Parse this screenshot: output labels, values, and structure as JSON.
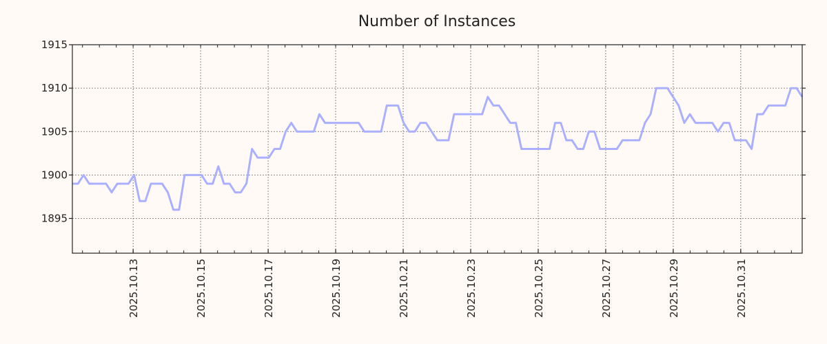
{
  "chart_data": {
    "type": "line",
    "title": "Number of Instances",
    "xlabel": "",
    "ylabel": "",
    "x_unit": "October 2025 day (fractional)",
    "x_start": 11.2,
    "x_step": 0.1663,
    "xlim": [
      11.2,
      32.82
    ],
    "ylim": [
      1891,
      1915
    ],
    "grid": true,
    "legend": "none",
    "y_ticks": [
      1895,
      1900,
      1905,
      1910,
      1915
    ],
    "y_tick_labels": [
      "1895",
      "1900",
      "1905",
      "1910",
      "1915"
    ],
    "x_ticks": [
      13,
      15,
      17,
      19,
      21,
      23,
      25,
      27,
      29,
      31
    ],
    "x_tick_labels": [
      "2025.10.13",
      "2025.10.15",
      "2025.10.17",
      "2025.10.19",
      "2025.10.21",
      "2025.10.23",
      "2025.10.25",
      "2025.10.27",
      "2025.10.29",
      "2025.10.31"
    ],
    "series": [
      {
        "name": "Number of Instances",
        "color": "#aab0ff",
        "values": [
          1899,
          1899,
          1900,
          1899,
          1899,
          1899,
          1899,
          1898,
          1899,
          1899,
          1899,
          1900,
          1897,
          1897,
          1899,
          1899,
          1899,
          1898,
          1896,
          1896,
          1900,
          1900,
          1900,
          1900,
          1899,
          1899,
          1901,
          1899,
          1899,
          1898,
          1898,
          1899,
          1903,
          1902,
          1902,
          1902,
          1903,
          1903,
          1905,
          1906,
          1905,
          1905,
          1905,
          1905,
          1907,
          1906,
          1906,
          1906,
          1906,
          1906,
          1906,
          1906,
          1905,
          1905,
          1905,
          1905,
          1908,
          1908,
          1908,
          1906,
          1905,
          1905,
          1906,
          1906,
          1905,
          1904,
          1904,
          1904,
          1907,
          1907,
          1907,
          1907,
          1907,
          1907,
          1909,
          1908,
          1908,
          1907,
          1906,
          1906,
          1903,
          1903,
          1903,
          1903,
          1903,
          1903,
          1906,
          1906,
          1904,
          1904,
          1903,
          1903,
          1905,
          1905,
          1903,
          1903,
          1903,
          1903,
          1904,
          1904,
          1904,
          1904,
          1906,
          1907,
          1910,
          1910,
          1910,
          1909,
          1908,
          1906,
          1907,
          1906,
          1906,
          1906,
          1906,
          1905,
          1906,
          1906,
          1904,
          1904,
          1904,
          1903,
          1907,
          1907,
          1908,
          1908,
          1908,
          1908,
          1910,
          1910,
          1909
        ]
      }
    ]
  }
}
